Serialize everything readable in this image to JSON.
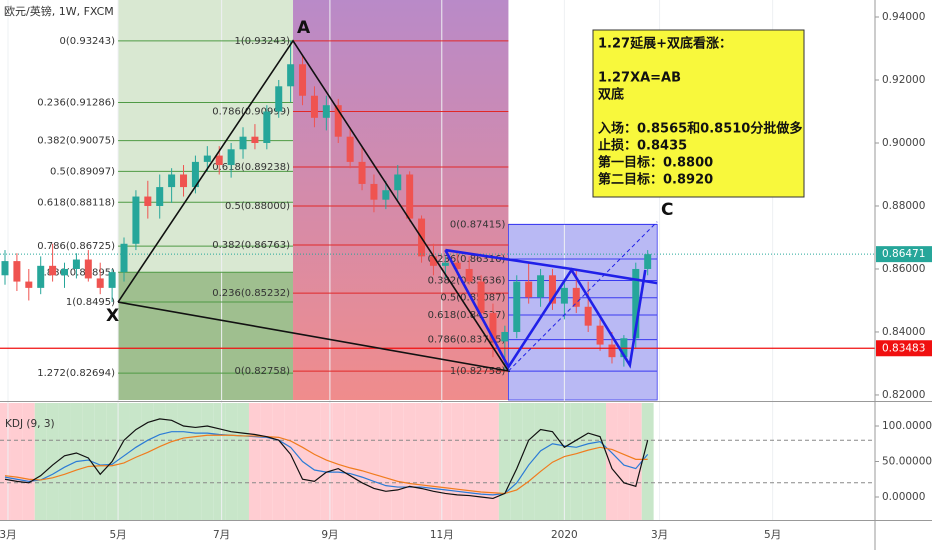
{
  "chart_data": {
    "type": "candlestick",
    "title": "欧元/英镑, 1W, FXCM",
    "up_color": "#26a69a",
    "down_color": "#ef5350",
    "ohlc": [
      [
        0.858,
        0.866,
        0.855,
        0.8625
      ],
      [
        0.8625,
        0.865,
        0.853,
        0.856
      ],
      [
        0.856,
        0.86,
        0.85,
        0.854
      ],
      [
        0.854,
        0.864,
        0.852,
        0.861
      ],
      [
        0.861,
        0.868,
        0.856,
        0.858
      ],
      [
        0.858,
        0.862,
        0.854,
        0.86
      ],
      [
        0.86,
        0.865,
        0.857,
        0.863
      ],
      [
        0.863,
        0.866,
        0.856,
        0.857
      ],
      [
        0.857,
        0.862,
        0.852,
        0.854
      ],
      [
        0.854,
        0.86,
        0.8495,
        0.859
      ],
      [
        0.859,
        0.87,
        0.856,
        0.868
      ],
      [
        0.868,
        0.885,
        0.866,
        0.883
      ],
      [
        0.883,
        0.888,
        0.876,
        0.88
      ],
      [
        0.88,
        0.89,
        0.876,
        0.886
      ],
      [
        0.886,
        0.892,
        0.881,
        0.89
      ],
      [
        0.89,
        0.893,
        0.883,
        0.886
      ],
      [
        0.886,
        0.896,
        0.884,
        0.894
      ],
      [
        0.894,
        0.899,
        0.891,
        0.896
      ],
      [
        0.896,
        0.899,
        0.89,
        0.893
      ],
      [
        0.893,
        0.9,
        0.889,
        0.898
      ],
      [
        0.898,
        0.905,
        0.895,
        0.902
      ],
      [
        0.902,
        0.906,
        0.898,
        0.9
      ],
      [
        0.9,
        0.912,
        0.898,
        0.91
      ],
      [
        0.91,
        0.92,
        0.908,
        0.918
      ],
      [
        0.918,
        0.93243,
        0.913,
        0.925
      ],
      [
        0.925,
        0.928,
        0.912,
        0.915
      ],
      [
        0.915,
        0.918,
        0.905,
        0.908
      ],
      [
        0.908,
        0.915,
        0.904,
        0.912
      ],
      [
        0.912,
        0.914,
        0.9,
        0.902
      ],
      [
        0.902,
        0.905,
        0.892,
        0.894
      ],
      [
        0.894,
        0.899,
        0.885,
        0.887
      ],
      [
        0.887,
        0.89,
        0.878,
        0.882
      ],
      [
        0.882,
        0.888,
        0.879,
        0.885
      ],
      [
        0.885,
        0.893,
        0.882,
        0.89
      ],
      [
        0.89,
        0.891,
        0.875,
        0.876
      ],
      [
        0.876,
        0.877,
        0.862,
        0.864
      ],
      [
        0.864,
        0.868,
        0.858,
        0.861
      ],
      [
        0.861,
        0.864,
        0.857,
        0.862
      ],
      [
        0.862,
        0.865,
        0.858,
        0.86
      ],
      [
        0.86,
        0.864,
        0.855,
        0.856
      ],
      [
        0.856,
        0.858,
        0.844,
        0.846
      ],
      [
        0.846,
        0.849,
        0.832,
        0.837
      ],
      [
        0.837,
        0.842,
        0.8276,
        0.84
      ],
      [
        0.84,
        0.858,
        0.838,
        0.856
      ],
      [
        0.856,
        0.862,
        0.849,
        0.851
      ],
      [
        0.851,
        0.86,
        0.848,
        0.858
      ],
      [
        0.858,
        0.86,
        0.847,
        0.849
      ],
      [
        0.849,
        0.856,
        0.844,
        0.854
      ],
      [
        0.854,
        0.86,
        0.846,
        0.848
      ],
      [
        0.848,
        0.856,
        0.84,
        0.842
      ],
      [
        0.842,
        0.844,
        0.834,
        0.836
      ],
      [
        0.836,
        0.84,
        0.83,
        0.832
      ],
      [
        0.832,
        0.839,
        0.829,
        0.838
      ],
      [
        0.838,
        0.862,
        0.835,
        0.86
      ],
      [
        0.86,
        0.866,
        0.858,
        0.8647
      ]
    ],
    "xlim": [
      -0.42,
      73.1
    ],
    "xticks": [
      {
        "value": 0.25,
        "label": "3月"
      },
      {
        "value": 9.5,
        "label": "5月"
      },
      {
        "value": 18.2,
        "label": "7月"
      },
      {
        "value": 27.3,
        "label": "9月"
      },
      {
        "value": 36.7,
        "label": "11月"
      },
      {
        "value": 47,
        "label": "2020"
      },
      {
        "value": 55,
        "label": "3月"
      },
      {
        "value": 64.5,
        "label": "5月"
      }
    ],
    "ylim": [
      0.8184,
      0.9454
    ],
    "yticks": [
      {
        "value": 0.94,
        "label": "0.94000"
      },
      {
        "value": 0.92,
        "label": "0.92000"
      },
      {
        "value": 0.9,
        "label": "0.90000"
      },
      {
        "value": 0.88,
        "label": "0.88000"
      },
      {
        "value": 0.86,
        "label": "0.86000"
      },
      {
        "value": 0.84,
        "label": "0.84000"
      },
      {
        "value": 0.82,
        "label": "0.82000"
      }
    ],
    "grid": true,
    "last_price": {
      "value": 0.86471,
      "label": "0.86471",
      "color": "#26a69a"
    },
    "stop_line": {
      "value": 0.83483,
      "label": "0.83483",
      "color": "#f01010"
    },
    "fibs": [
      {
        "x_range": [
          9.5,
          24.2
        ],
        "color": "#4f9a45",
        "fill": "#d9e8d2",
        "fill2": "#9fbf8f",
        "split": 0.85895,
        "levels": [
          {
            "value": 0.93243,
            "label": "0(0.93243)"
          },
          {
            "value": 0.91286,
            "label": "0.236(0.91286)"
          },
          {
            "value": 0.90075,
            "label": "0.382(0.90075)"
          },
          {
            "value": 0.89097,
            "label": "0.5(0.89097)"
          },
          {
            "value": 0.88118,
            "label": "0.618(0.88118)"
          },
          {
            "value": 0.86725,
            "label": "0.786(0.86725)"
          },
          {
            "value": 0.85895,
            "label": "0.886(0.85895)"
          },
          {
            "value": 0.8495,
            "label": "1(0.8495)"
          },
          {
            "value": 0.82694,
            "label": "1.272(0.82694)"
          }
        ]
      },
      {
        "x_range": [
          24.2,
          42.3
        ],
        "color": "#e02828",
        "fill": "#b98ac8",
        "fill2": "#f08c8c",
        "levels": [
          {
            "value": 0.93243,
            "label": "1(0.93243)"
          },
          {
            "value": 0.90999,
            "label": "0.786(0.90999)"
          },
          {
            "value": 0.89238,
            "label": "0.618(0.89238)"
          },
          {
            "value": 0.88,
            "label": "0.5(0.88000)"
          },
          {
            "value": 0.86763,
            "label": "0.382(0.86763)"
          },
          {
            "value": 0.85232,
            "label": "0.236(0.85232)"
          },
          {
            "value": 0.82758,
            "label": "0(0.82758)"
          }
        ]
      },
      {
        "x_range": [
          42.3,
          54.8
        ],
        "color": "#3a3af0",
        "fill": "#b9b9f4",
        "fill2": "#b9b9f4",
        "levels": [
          {
            "value": 0.87415,
            "label": "0(0.87415)"
          },
          {
            "value": 0.86316,
            "label": "0.236(0.86316)"
          },
          {
            "value": 0.85636,
            "label": "0.382(0.85636)"
          },
          {
            "value": 0.85087,
            "label": "0.5(0.85087)"
          },
          {
            "value": 0.84537,
            "label": "0.618(0.84537)"
          },
          {
            "value": 0.83755,
            "label": "0.786(0.83755)"
          },
          {
            "value": 0.82758,
            "label": "1(0.82758)"
          }
        ]
      }
    ],
    "pattern_lines": [
      {
        "color": "#111111",
        "width": 1.6,
        "points": [
          [
            9.5,
            0.8495
          ],
          [
            24.2,
            0.93243
          ],
          [
            42.3,
            0.8276
          ],
          [
            9.5,
            0.8495
          ]
        ]
      },
      {
        "color": "#2020e8",
        "width": 2.6,
        "points": [
          [
            37,
            0.866
          ],
          [
            42.3,
            0.8289
          ],
          [
            47.6,
            0.8597
          ],
          [
            52.5,
            0.8295
          ],
          [
            53.8,
            0.8597
          ]
        ]
      },
      {
        "color": "#2020e8",
        "width": 2.6,
        "points": [
          [
            37,
            0.866
          ],
          [
            47.6,
            0.86
          ],
          [
            54.8,
            0.8555
          ]
        ]
      },
      {
        "color": "#2020e8",
        "width": 1,
        "dash": true,
        "points": [
          [
            42.3,
            0.8276
          ],
          [
            54.8,
            0.875
          ]
        ]
      }
    ],
    "point_labels": [
      "X",
      "A",
      "C"
    ],
    "note": [
      [
        "1.27延展+双底看涨："
      ],
      [
        "1.27XA=AB",
        "双底"
      ],
      [
        "入场：0.8565和0.8510分批做多",
        "止损：0.8435",
        "第一目标：0.8800",
        "第二目标：0.8920"
      ]
    ],
    "indicator": {
      "title": "KDJ (9, 3)",
      "ylim": [
        -32.4,
        132.4
      ],
      "yticks": [
        {
          "value": 100,
          "label": "100.00000"
        },
        {
          "value": 50,
          "label": "50.00000"
        },
        {
          "value": 0,
          "label": "0.00000"
        }
      ],
      "levels": [
        80,
        20
      ],
      "series": [
        {
          "color": "#2b7bd6",
          "values": [
            28,
            25,
            22,
            24,
            32,
            42,
            50,
            52,
            45,
            46,
            58,
            70,
            80,
            88,
            92,
            92,
            90,
            90,
            88,
            87,
            86,
            85,
            84,
            80,
            70,
            50,
            38,
            35,
            35,
            33,
            28,
            22,
            16,
            14,
            14,
            14,
            12,
            10,
            8,
            6,
            4,
            3,
            5,
            20,
            45,
            65,
            75,
            72,
            70,
            75,
            78,
            62,
            45,
            40,
            60
          ]
        },
        {
          "color": "#f07c1e",
          "values": [
            30,
            28,
            25,
            24,
            27,
            32,
            38,
            43,
            44,
            44,
            48,
            56,
            63,
            71,
            78,
            83,
            85,
            87,
            87,
            87,
            86,
            86,
            85,
            84,
            79,
            70,
            60,
            52,
            46,
            41,
            37,
            32,
            27,
            22,
            19,
            17,
            15,
            13,
            11,
            9,
            7,
            6,
            5,
            10,
            22,
            36,
            49,
            57,
            61,
            66,
            70,
            67,
            60,
            53,
            53
          ]
        },
        {
          "color": "#111111",
          "values": [
            25,
            22,
            20,
            30,
            45,
            58,
            62,
            55,
            32,
            50,
            80,
            95,
            105,
            110,
            108,
            100,
            98,
            100,
            96,
            92,
            90,
            88,
            85,
            80,
            60,
            25,
            22,
            35,
            40,
            30,
            20,
            12,
            8,
            10,
            15,
            12,
            8,
            5,
            3,
            2,
            0,
            -2,
            5,
            40,
            80,
            95,
            92,
            70,
            80,
            90,
            85,
            40,
            20,
            15,
            80
          ]
        }
      ]
    }
  }
}
